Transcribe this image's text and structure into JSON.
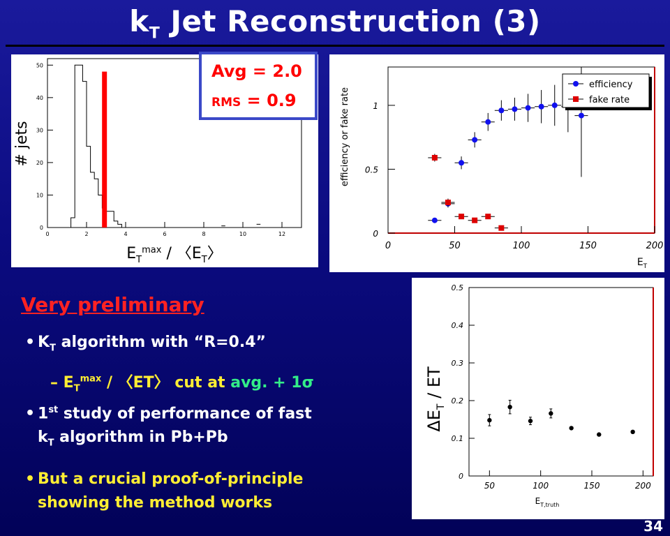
{
  "slide": {
    "title_main": "k",
    "title_sub": "T",
    "title_rest": " Jet Reconstruction (3)",
    "page_number": "34"
  },
  "stats_box": {
    "avg_label": "Avg = 2.0",
    "rms_label": "RMS",
    "rms_value": " = 0.9"
  },
  "text": {
    "heading": "Very preliminary",
    "bullet1_main": "K",
    "bullet1_sub": "T",
    "bullet1_rest": " algorithm with “R=0.4”",
    "bullet2_prefix": "– E",
    "bullet2_sub": "T",
    "bullet2_sup": "max",
    "bullet2_mid": " / 〈ET〉 cut at ",
    "bullet2_green": "avg. + 1σ",
    "bullet3_line1_a": "1",
    "bullet3_line1_sup": "st",
    "bullet3_line1_b": " study of performance of fast",
    "bullet3_line2_a": "k",
    "bullet3_line2_sub": "T",
    "bullet3_line2_b": " algorithm in Pb+Pb",
    "bullet4_line1": "But a crucial proof-of-principle",
    "bullet4_line2": "showing the method works"
  },
  "colors": {
    "background": "#0b0b80",
    "accent_red": "#ff0000",
    "bullet_yellow": "#ffee33",
    "formula_green": "#33ee88",
    "efficiency_blue": "#1111ee",
    "fake_red": "#dd0000"
  },
  "chart_data": [
    {
      "type": "bar",
      "subtype": "step-histogram",
      "xlabel": "E_T^max / 〈E_T〉",
      "ylabel": "# jets",
      "xlim": [
        0,
        13
      ],
      "ylim": [
        0,
        52
      ],
      "xticks": [
        0,
        2,
        4,
        6,
        8,
        10,
        12
      ],
      "yticks": [
        0,
        10,
        20,
        30,
        40,
        50
      ],
      "bin_width": 0.2,
      "x_start": 1.0,
      "values": [
        0,
        3,
        50,
        50,
        45,
        25,
        17,
        15,
        10,
        6,
        5,
        5,
        2,
        1
      ],
      "marker_line_x": 2.9,
      "annotations": [
        "Avg = 2.0",
        "RMS = 0.9"
      ]
    },
    {
      "type": "scatter",
      "xlabel": "E_T",
      "ylabel": "efficiency or fake rate",
      "xlim": [
        0,
        200
      ],
      "ylim": [
        0,
        1.3
      ],
      "xticks": [
        0,
        50,
        100,
        150,
        200
      ],
      "yticks": [
        0,
        0.5,
        1
      ],
      "legend": "top-right",
      "series": [
        {
          "name": "efficiency",
          "points": [
            {
              "x": 35,
              "y": 0.1,
              "err": 0.02
            },
            {
              "x": 45,
              "y": 0.23,
              "err": 0.03
            },
            {
              "x": 55,
              "y": 0.55,
              "err": 0.05
            },
            {
              "x": 65,
              "y": 0.73,
              "err": 0.06
            },
            {
              "x": 75,
              "y": 0.87,
              "err": 0.07
            },
            {
              "x": 85,
              "y": 0.96,
              "err": 0.08
            },
            {
              "x": 95,
              "y": 0.97,
              "err": 0.09
            },
            {
              "x": 105,
              "y": 0.98,
              "err": 0.11
            },
            {
              "x": 115,
              "y": 0.99,
              "err": 0.13
            },
            {
              "x": 125,
              "y": 1.0,
              "err": 0.16
            },
            {
              "x": 135,
              "y": 0.99,
              "err": 0.2
            },
            {
              "x": 145,
              "y": 0.92,
              "err": 0.48
            }
          ]
        },
        {
          "name": "fake rate",
          "points": [
            {
              "x": 35,
              "y": 0.59,
              "err": 0.03
            },
            {
              "x": 45,
              "y": 0.24,
              "err": 0.03
            },
            {
              "x": 55,
              "y": 0.13,
              "err": 0.02
            },
            {
              "x": 65,
              "y": 0.1,
              "err": 0.02
            },
            {
              "x": 75,
              "y": 0.13,
              "err": 0.02
            },
            {
              "x": 85,
              "y": 0.04,
              "err": 0.01
            }
          ]
        }
      ]
    },
    {
      "type": "scatter",
      "xlabel": "E_T,truth",
      "ylabel": "ΔE_T / ET",
      "xlim": [
        30,
        210
      ],
      "ylim": [
        0,
        0.5
      ],
      "xticks": [
        50,
        100,
        150,
        200
      ],
      "yticks": [
        0,
        0.1,
        0.2,
        0.3,
        0.4,
        0.5
      ],
      "points": [
        {
          "x": 50,
          "y": 0.148,
          "err": 0.015
        },
        {
          "x": 70,
          "y": 0.183,
          "err": 0.018
        },
        {
          "x": 90,
          "y": 0.146,
          "err": 0.01
        },
        {
          "x": 110,
          "y": 0.166,
          "err": 0.012
        },
        {
          "x": 130,
          "y": 0.127,
          "err": 0.003
        },
        {
          "x": 157,
          "y": 0.11,
          "err": 0.002
        },
        {
          "x": 190,
          "y": 0.117,
          "err": 0.002
        }
      ]
    }
  ]
}
